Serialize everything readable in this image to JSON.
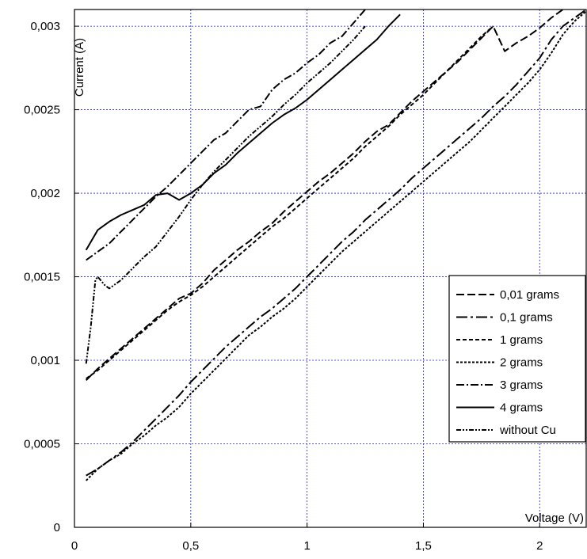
{
  "chart_data": {
    "type": "line",
    "xlabel": "Voltage (V)",
    "ylabel": "Current (A)",
    "xlim": [
      0,
      2.2
    ],
    "ylim": [
      0,
      0.0031
    ],
    "x_ticks": [
      0,
      0.5,
      1,
      1.5,
      2
    ],
    "x_tick_labels": [
      "0",
      "0,5",
      "1",
      "1,5",
      "2"
    ],
    "y_ticks": [
      0,
      0.0005,
      0.001,
      0.0015,
      0.002,
      0.0025,
      0.003
    ],
    "y_tick_labels": [
      "0",
      "0,0005",
      "0,001",
      "0,0015",
      "0,002",
      "0,0025",
      "0,003"
    ],
    "grid": true,
    "grid_color": "#2222cc",
    "legend_position": "right",
    "series": [
      {
        "name": "0,01 grams",
        "dash": "10,4",
        "x": [
          0.05,
          0.1,
          0.15,
          0.2,
          0.25,
          0.3,
          0.35,
          0.4,
          0.45,
          0.5,
          0.55,
          0.6,
          0.65,
          0.7,
          0.75,
          0.8,
          0.85,
          0.9,
          0.95,
          1.0,
          1.05,
          1.1,
          1.15,
          1.2,
          1.25,
          1.3,
          1.35,
          1.4,
          1.45,
          1.5,
          1.55,
          1.6,
          1.65,
          1.7,
          1.75,
          1.8,
          1.85,
          1.9,
          1.95,
          2.0,
          2.05,
          2.1,
          2.15,
          2.2
        ],
        "y": [
          0.00088,
          0.00095,
          0.00101,
          0.00107,
          0.00113,
          0.00119,
          0.00125,
          0.00131,
          0.00137,
          0.0014,
          0.00146,
          0.00154,
          0.0016,
          0.00166,
          0.00171,
          0.00177,
          0.00182,
          0.00189,
          0.00195,
          0.00201,
          0.00207,
          0.00212,
          0.00218,
          0.00224,
          0.00231,
          0.00237,
          0.00241,
          0.00248,
          0.00255,
          0.00261,
          0.00267,
          0.00273,
          0.00279,
          0.00286,
          0.00293,
          0.003,
          0.00285,
          0.0029,
          0.00294,
          0.00299,
          0.00305,
          0.0031,
          0.00312,
          0.00314
        ]
      },
      {
        "name": "0,1 grams",
        "dash": "14,4,3,4",
        "x": [
          0.05,
          0.1,
          0.15,
          0.2,
          0.25,
          0.3,
          0.35,
          0.4,
          0.45,
          0.5,
          0.55,
          0.6,
          0.65,
          0.7,
          0.75,
          0.8,
          0.85,
          0.9,
          0.95,
          1.0,
          1.05,
          1.1,
          1.15,
          1.2,
          1.25,
          1.3,
          1.35,
          1.4,
          1.45,
          1.5,
          1.55,
          1.6,
          1.65,
          1.7,
          1.75,
          1.8,
          1.85,
          1.9,
          1.95,
          2.0,
          2.05,
          2.1,
          2.15,
          2.2
        ],
        "y": [
          0.00031,
          0.00035,
          0.0004,
          0.00045,
          0.00051,
          0.00058,
          0.00065,
          0.00072,
          0.00079,
          0.00087,
          0.00094,
          0.00101,
          0.00108,
          0.00114,
          0.0012,
          0.00126,
          0.00131,
          0.00137,
          0.00143,
          0.0015,
          0.00157,
          0.00164,
          0.00171,
          0.00177,
          0.00184,
          0.0019,
          0.00196,
          0.00202,
          0.00209,
          0.00215,
          0.00221,
          0.00227,
          0.00233,
          0.00239,
          0.00245,
          0.00252,
          0.00258,
          0.00265,
          0.00273,
          0.00281,
          0.00292,
          0.003,
          0.00305,
          0.0031
        ]
      },
      {
        "name": "1 grams",
        "dash": "5,3",
        "x": [
          0.05,
          0.1,
          0.15,
          0.2,
          0.25,
          0.3,
          0.35,
          0.4,
          0.45,
          0.5,
          0.55,
          0.6,
          0.65,
          0.7,
          0.75,
          0.8,
          0.85,
          0.9,
          0.95,
          1.0,
          1.05,
          1.1,
          1.15,
          1.2,
          1.25,
          1.3,
          1.35,
          1.4,
          1.45,
          1.5,
          1.55,
          1.6,
          1.65,
          1.7,
          1.75,
          1.8
        ],
        "y": [
          0.00089,
          0.00094,
          0.001,
          0.00106,
          0.00112,
          0.00118,
          0.00124,
          0.0013,
          0.00135,
          0.00139,
          0.00144,
          0.0015,
          0.00156,
          0.00162,
          0.00168,
          0.00174,
          0.0018,
          0.00185,
          0.00191,
          0.00197,
          0.00203,
          0.00209,
          0.00215,
          0.00221,
          0.00228,
          0.00234,
          0.0024,
          0.00247,
          0.00253,
          0.00259,
          0.00266,
          0.00273,
          0.0028,
          0.00287,
          0.00294,
          0.003
        ]
      },
      {
        "name": "2 grams",
        "dash": "3,2",
        "x": [
          0.05,
          0.1,
          0.15,
          0.2,
          0.25,
          0.3,
          0.35,
          0.4,
          0.45,
          0.5,
          0.55,
          0.6,
          0.65,
          0.7,
          0.75,
          0.8,
          0.85,
          0.9,
          0.95,
          1.0,
          1.05,
          1.1,
          1.15,
          1.2,
          1.25,
          1.3,
          1.35,
          1.4,
          1.45,
          1.5,
          1.55,
          1.6,
          1.65,
          1.7,
          1.75,
          1.8,
          1.85,
          1.9,
          1.95,
          2.0,
          2.05,
          2.1,
          2.15,
          2.2
        ],
        "y": [
          0.00028,
          0.00035,
          0.0004,
          0.00044,
          0.0005,
          0.00055,
          0.00061,
          0.00066,
          0.00072,
          0.0008,
          0.00087,
          0.00094,
          0.00101,
          0.00108,
          0.00115,
          0.0012,
          0.00126,
          0.00131,
          0.00137,
          0.00144,
          0.00151,
          0.00158,
          0.00165,
          0.00171,
          0.00177,
          0.00183,
          0.00189,
          0.00195,
          0.00201,
          0.00207,
          0.00213,
          0.00219,
          0.00225,
          0.00231,
          0.00238,
          0.00245,
          0.00252,
          0.00259,
          0.00266,
          0.00274,
          0.00284,
          0.00295,
          0.00303,
          0.00309
        ]
      },
      {
        "name": "3 grams",
        "dash": "10,3,2,3",
        "x": [
          0.05,
          0.1,
          0.15,
          0.2,
          0.25,
          0.3,
          0.35,
          0.4,
          0.45,
          0.5,
          0.55,
          0.6,
          0.65,
          0.7,
          0.75,
          0.8,
          0.85,
          0.9,
          0.95,
          1.0,
          1.05,
          1.1,
          1.15,
          1.2,
          1.25
        ],
        "y": [
          0.0016,
          0.00165,
          0.0017,
          0.00177,
          0.00184,
          0.00191,
          0.00198,
          0.00204,
          0.00211,
          0.00218,
          0.00225,
          0.00232,
          0.00236,
          0.00243,
          0.0025,
          0.00252,
          0.00262,
          0.00268,
          0.00272,
          0.00278,
          0.00283,
          0.0029,
          0.00294,
          0.00302,
          0.0031
        ]
      },
      {
        "name": "4 grams",
        "dash": "",
        "x": [
          0.05,
          0.1,
          0.15,
          0.2,
          0.25,
          0.3,
          0.35,
          0.4,
          0.45,
          0.5,
          0.55,
          0.6,
          0.65,
          0.7,
          0.75,
          0.8,
          0.85,
          0.9,
          0.95,
          1.0,
          1.05,
          1.1,
          1.15,
          1.2,
          1.25,
          1.3,
          1.35,
          1.4
        ],
        "y": [
          0.00166,
          0.00178,
          0.00183,
          0.00187,
          0.0019,
          0.00193,
          0.00199,
          0.002,
          0.00196,
          0.002,
          0.00205,
          0.00212,
          0.00217,
          0.00224,
          0.0023,
          0.00236,
          0.00242,
          0.00247,
          0.00251,
          0.00256,
          0.00262,
          0.00268,
          0.00274,
          0.0028,
          0.00286,
          0.00292,
          0.003,
          0.00307
        ]
      },
      {
        "name": "without Cu",
        "dash": "6,2,2,2,2,2",
        "x": [
          0.05,
          0.07,
          0.09,
          0.1,
          0.13,
          0.15,
          0.2,
          0.25,
          0.3,
          0.35,
          0.4,
          0.45,
          0.5,
          0.55,
          0.6,
          0.65,
          0.7,
          0.75,
          0.8,
          0.85,
          0.9,
          0.95,
          1.0,
          1.05,
          1.1,
          1.15,
          1.2,
          1.25
        ],
        "y": [
          0.00098,
          0.0012,
          0.00148,
          0.0015,
          0.00145,
          0.00143,
          0.00148,
          0.00155,
          0.00162,
          0.00168,
          0.00177,
          0.00186,
          0.00196,
          0.00205,
          0.00213,
          0.0022,
          0.00227,
          0.00234,
          0.0024,
          0.00246,
          0.00253,
          0.00259,
          0.00266,
          0.00272,
          0.00278,
          0.00285,
          0.00292,
          0.003
        ]
      }
    ]
  }
}
